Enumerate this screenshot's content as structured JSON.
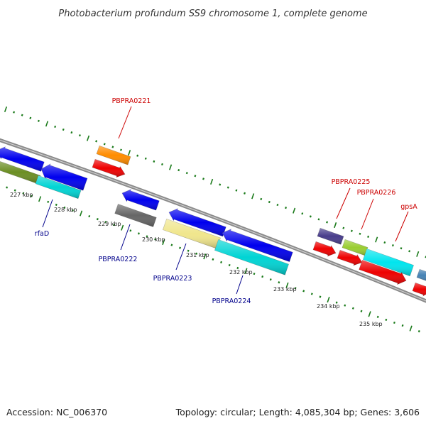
{
  "title": "Photobacterium profundum SS9 chromosome 1, complete genome",
  "footer": {
    "accession": "Accession: NC_006370",
    "summary": "Topology: circular; Length: 4,085,304 bp; Genes: 3,606"
  },
  "colors": {
    "backbone": "#8a8a8a",
    "tick": "#1a7a1a",
    "label_forward": "#cc0000",
    "label_reverse": "#00008b"
  },
  "scale": {
    "unit": "kbp",
    "labeled_ticks": [
      "227 kbp",
      "228 kbp",
      "229 kbp",
      "230 kbp",
      "231 kbp",
      "232 kbp",
      "233 kbp",
      "234 kbp",
      "235 kbp"
    ]
  },
  "gene_labels": [
    {
      "name": "PBPRA0221",
      "strand": "forward"
    },
    {
      "name": "rfaD",
      "strand": "reverse"
    },
    {
      "name": "PBPRA0222",
      "strand": "reverse"
    },
    {
      "name": "PBPRA0223",
      "strand": "reverse"
    },
    {
      "name": "PBPRA0224",
      "strand": "reverse"
    },
    {
      "name": "PBPRA0225",
      "strand": "forward"
    },
    {
      "name": "PBPRA0226",
      "strand": "forward"
    },
    {
      "name": "gpsA",
      "strand": "forward"
    }
  ],
  "features": [
    {
      "kind": "gene",
      "strand": "reverse",
      "color": "#0000ee"
    },
    {
      "kind": "gene",
      "strand": "reverse",
      "color": "#0000ee"
    },
    {
      "kind": "cds",
      "strand": "reverse",
      "color": "#6b8e23"
    },
    {
      "kind": "cds",
      "strand": "reverse",
      "color": "#00d4d4"
    },
    {
      "kind": "other",
      "strand": "forward",
      "color": "#ff8c00"
    },
    {
      "kind": "gene",
      "strand": "forward",
      "color": "#ee0000"
    },
    {
      "kind": "gene",
      "strand": "reverse",
      "color": "#0000ee"
    },
    {
      "kind": "cds",
      "strand": "reverse",
      "color": "#666666"
    },
    {
      "kind": "gene",
      "strand": "reverse",
      "color": "#0000ee"
    },
    {
      "kind": "gene",
      "strand": "reverse",
      "color": "#0000ee"
    },
    {
      "kind": "cds",
      "strand": "reverse",
      "color": "#f0e68c"
    },
    {
      "kind": "cds",
      "strand": "reverse",
      "color": "#00d4d4"
    },
    {
      "kind": "cds",
      "strand": "forward",
      "color": "#483d8b"
    },
    {
      "kind": "gene",
      "strand": "forward",
      "color": "#ee0000"
    },
    {
      "kind": "cds",
      "strand": "forward",
      "color": "#9acd32"
    },
    {
      "kind": "gene",
      "strand": "forward",
      "color": "#ee0000"
    },
    {
      "kind": "cds",
      "strand": "forward",
      "color": "#00e5ee"
    },
    {
      "kind": "gene",
      "strand": "forward",
      "color": "#ee0000"
    },
    {
      "kind": "cds",
      "strand": "forward",
      "color": "#4682b4"
    },
    {
      "kind": "gene",
      "strand": "forward",
      "color": "#ee0000"
    }
  ]
}
